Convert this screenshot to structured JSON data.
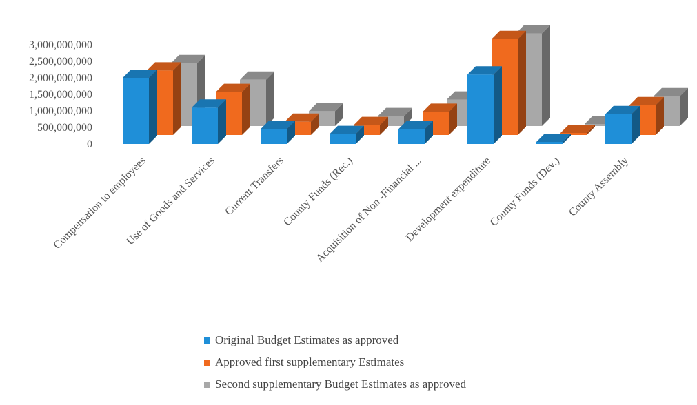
{
  "chart_data": {
    "type": "bar",
    "categories": [
      "Compensation to employees",
      "Use of Goods and Services",
      "Current Transfers",
      "County Funds (Rec.)",
      "Acquisition of Non -Financial ...",
      "Development expenditure",
      "County Funds (Dev.)",
      "County Assembly"
    ],
    "series": [
      {
        "name": "Original  Budget Estimates as approved",
        "color": "#1f8fd8",
        "values": [
          2000000000,
          1100000000,
          450000000,
          300000000,
          450000000,
          2100000000,
          60000000,
          900000000
        ]
      },
      {
        "name": "Approved first supplementary Estimates",
        "color": "#f06a1e",
        "values": [
          1950000000,
          1300000000,
          400000000,
          300000000,
          700000000,
          2900000000,
          60000000,
          900000000
        ]
      },
      {
        "name": "Second supplementary Budget Estimates as approved",
        "color": "#a8a8a8",
        "values": [
          1900000000,
          1400000000,
          450000000,
          300000000,
          800000000,
          2800000000,
          60000000,
          900000000
        ]
      }
    ],
    "y_ticks": [
      "3,000,000,000",
      "2,500,000,000",
      "2,000,000,000",
      "1,500,000,000",
      "1,000,000,000",
      "500,000,000",
      "0"
    ],
    "ylim": [
      0,
      3000000000
    ],
    "legend_position": "bottom",
    "grid": false
  }
}
